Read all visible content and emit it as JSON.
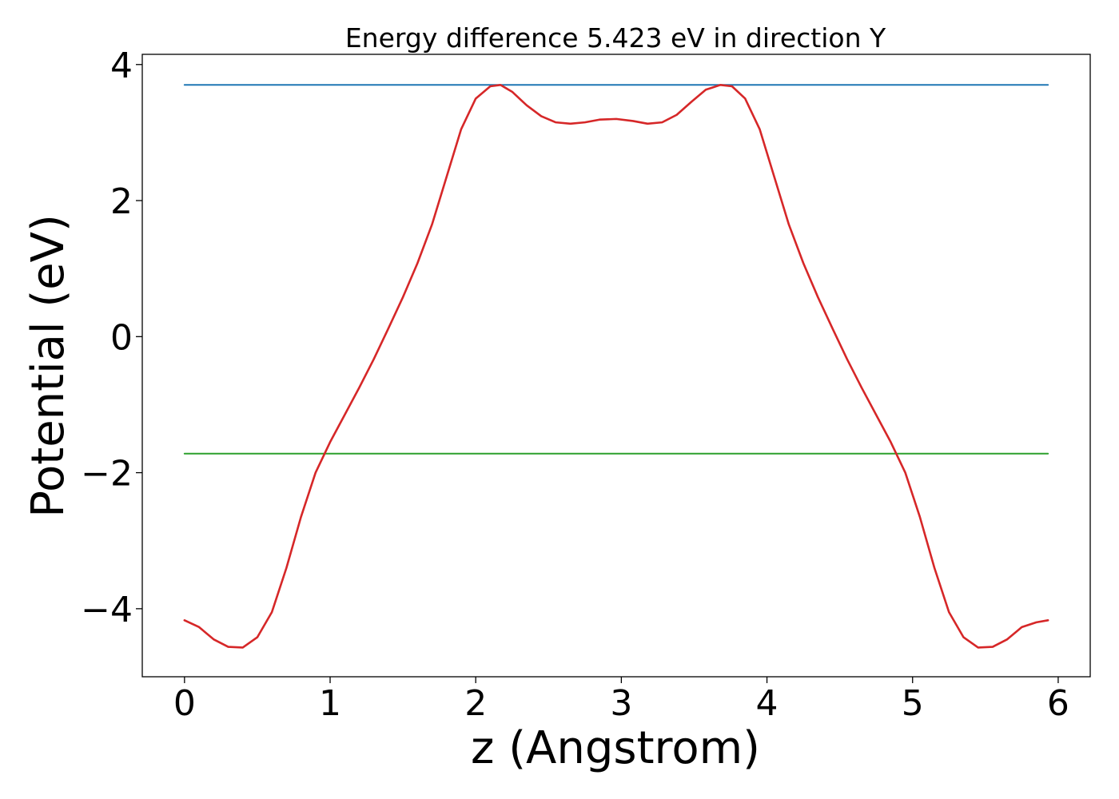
{
  "chart_data": {
    "type": "line",
    "title": "Energy difference 5.423 eV in direction Y",
    "xlabel": "z (Angstrom)",
    "ylabel": "Potential (eV)",
    "xlim": [
      -0.29,
      6.22
    ],
    "ylim": [
      -5.0,
      4.15
    ],
    "xticks": [
      0,
      1,
      2,
      3,
      4,
      5,
      6
    ],
    "xtick_labels": [
      "0",
      "1",
      "2",
      "3",
      "4",
      "5",
      "6"
    ],
    "yticks": [
      -4,
      -2,
      0,
      2,
      4
    ],
    "ytick_labels": [
      "−4",
      "−2",
      "0",
      "2",
      "4"
    ],
    "grid": false,
    "colors": {
      "potential": "#d62728",
      "upper_level": "#1f77b4",
      "lower_level": "#2ca02c"
    },
    "series": [
      {
        "x": [
          0.0,
          0.1,
          0.2,
          0.3,
          0.4,
          0.5,
          0.6,
          0.7,
          0.8,
          0.9,
          1.0,
          1.1,
          1.2,
          1.3,
          1.4,
          1.5,
          1.6,
          1.7,
          1.8,
          1.9,
          2.0,
          2.1,
          2.17,
          2.25,
          2.35,
          2.45,
          2.55,
          2.65,
          2.75,
          2.85,
          2.965,
          3.08,
          3.18,
          3.28,
          3.38,
          3.48,
          3.58,
          3.68,
          3.76,
          3.85,
          3.95,
          4.05,
          4.15,
          4.25,
          4.35,
          4.45,
          4.55,
          4.65,
          4.75,
          4.85,
          4.95,
          5.05,
          5.15,
          5.25,
          5.35,
          5.45,
          5.55,
          5.65,
          5.75,
          5.85,
          5.93
        ],
        "y": [
          -4.17,
          -4.27,
          -4.45,
          -4.56,
          -4.57,
          -4.42,
          -4.05,
          -3.4,
          -2.65,
          -2.0,
          -1.55,
          -1.15,
          -0.75,
          -0.33,
          0.12,
          0.58,
          1.08,
          1.65,
          2.35,
          3.05,
          3.5,
          3.68,
          3.7,
          3.6,
          3.4,
          3.24,
          3.15,
          3.13,
          3.15,
          3.19,
          3.2,
          3.17,
          3.13,
          3.15,
          3.26,
          3.45,
          3.63,
          3.7,
          3.68,
          3.5,
          3.05,
          2.35,
          1.65,
          1.08,
          0.58,
          0.12,
          -0.33,
          -0.75,
          -1.15,
          -1.55,
          -2.0,
          -2.65,
          -3.4,
          -4.05,
          -4.42,
          -4.57,
          -4.56,
          -4.45,
          -4.27,
          -4.2,
          -4.17
        ]
      },
      {
        "x": [
          0.0,
          5.93
        ],
        "y": [
          3.7,
          3.7
        ]
      },
      {
        "x": [
          0.0,
          5.93
        ],
        "y": [
          -1.72,
          -1.72
        ]
      }
    ]
  }
}
